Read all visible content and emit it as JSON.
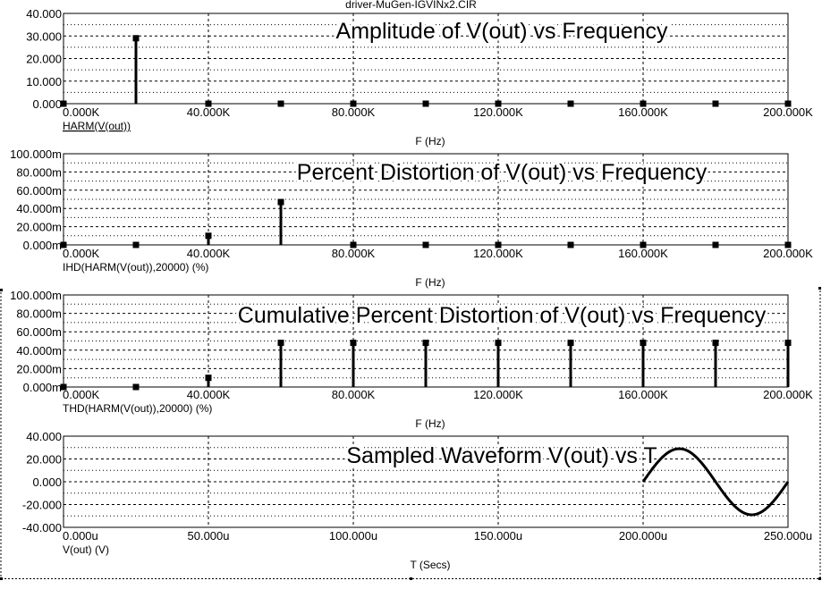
{
  "window": {
    "title": "driver-MuGen-IGVINx2.CIR"
  },
  "colors": {
    "background": "#ffffff",
    "frame": "#000000",
    "grid": "#000000",
    "trace": "#000000"
  },
  "chart_data": [
    {
      "type": "bar",
      "style": "stem",
      "title": "Amplitude of V(out) vs Frequency",
      "trace_label": "HARM(V(out))",
      "trace_label_underlined": true,
      "xlabel": "F (Hz)",
      "xlim": [
        0,
        200000
      ],
      "ylim": [
        0,
        40
      ],
      "xticks": [
        0,
        40000,
        80000,
        120000,
        160000,
        200000
      ],
      "xtick_labels": [
        "0.000K",
        "40.000K",
        "80.000K",
        "120.000K",
        "160.000K",
        "200.000K"
      ],
      "yticks": [
        0,
        10,
        20,
        30,
        40
      ],
      "ytick_labels": [
        "0.000",
        "10.000",
        "20.000",
        "30.000",
        "40.000"
      ],
      "grid": true,
      "x": [
        0,
        20000,
        40000,
        60000,
        80000,
        100000,
        120000,
        140000,
        160000,
        180000,
        200000
      ],
      "values": [
        0,
        29,
        0,
        0,
        0,
        0,
        0,
        0,
        0,
        0,
        0
      ]
    },
    {
      "type": "bar",
      "style": "stem",
      "title": "Percent Distortion of V(out) vs Frequency",
      "trace_label": "IHD(HARM(V(out)),20000) (%)",
      "trace_label_underlined": false,
      "xlabel": "F (Hz)",
      "xlim": [
        0,
        200000
      ],
      "ylim": [
        0,
        100
      ],
      "xticks": [
        0,
        40000,
        80000,
        120000,
        160000,
        200000
      ],
      "xtick_labels": [
        "0.000K",
        "40.000K",
        "80.000K",
        "120.000K",
        "160.000K",
        "200.000K"
      ],
      "yticks": [
        0,
        20,
        40,
        60,
        80,
        100
      ],
      "ytick_labels": [
        "0.000m",
        "20.000m",
        "40.000m",
        "60.000m",
        "80.000m",
        "100.000m"
      ],
      "grid": true,
      "x": [
        0,
        20000,
        40000,
        60000,
        80000,
        100000,
        120000,
        140000,
        160000,
        180000,
        200000
      ],
      "values": [
        0,
        0,
        10,
        47,
        0,
        0,
        0,
        0,
        0,
        0,
        0
      ]
    },
    {
      "type": "bar",
      "style": "stem",
      "title": "Cumulative Percent Distortion of V(out) vs Frequency",
      "trace_label": "THD(HARM(V(out)),20000) (%)",
      "trace_label_underlined": false,
      "xlabel": "F (Hz)",
      "xlim": [
        0,
        200000
      ],
      "ylim": [
        0,
        100
      ],
      "xticks": [
        0,
        40000,
        80000,
        120000,
        160000,
        200000
      ],
      "xtick_labels": [
        "0.000K",
        "40.000K",
        "80.000K",
        "120.000K",
        "160.000K",
        "200.000K"
      ],
      "yticks": [
        0,
        20,
        40,
        60,
        80,
        100
      ],
      "ytick_labels": [
        "0.000m",
        "20.000m",
        "40.000m",
        "60.000m",
        "80.000m",
        "100.000m"
      ],
      "grid": true,
      "x": [
        0,
        20000,
        40000,
        60000,
        80000,
        100000,
        120000,
        140000,
        160000,
        180000,
        200000
      ],
      "values": [
        0,
        0,
        10,
        48,
        48,
        48,
        48,
        48,
        48,
        48,
        48
      ]
    },
    {
      "type": "line",
      "title": "Sampled Waveform  V(out) vs T",
      "trace_label": "V(out) (V)",
      "trace_label_underlined": false,
      "xlabel": "T (Secs)",
      "xlim": [
        0,
        250
      ],
      "ylim": [
        -40,
        40
      ],
      "xticks": [
        0,
        50,
        100,
        150,
        200,
        250
      ],
      "xtick_labels": [
        "0.000u",
        "50.000u",
        "100.000u",
        "150.000u",
        "200.000u",
        "250.000u"
      ],
      "yticks": [
        -40,
        -20,
        0,
        20,
        40
      ],
      "ytick_labels": [
        "-40.000",
        "-20.000",
        "0.000",
        "20.000",
        "40.000"
      ],
      "grid": true,
      "series": [
        {
          "amplitude": 29,
          "frequency_khz": 20,
          "t_start": 200,
          "t_end": 250
        }
      ]
    }
  ]
}
